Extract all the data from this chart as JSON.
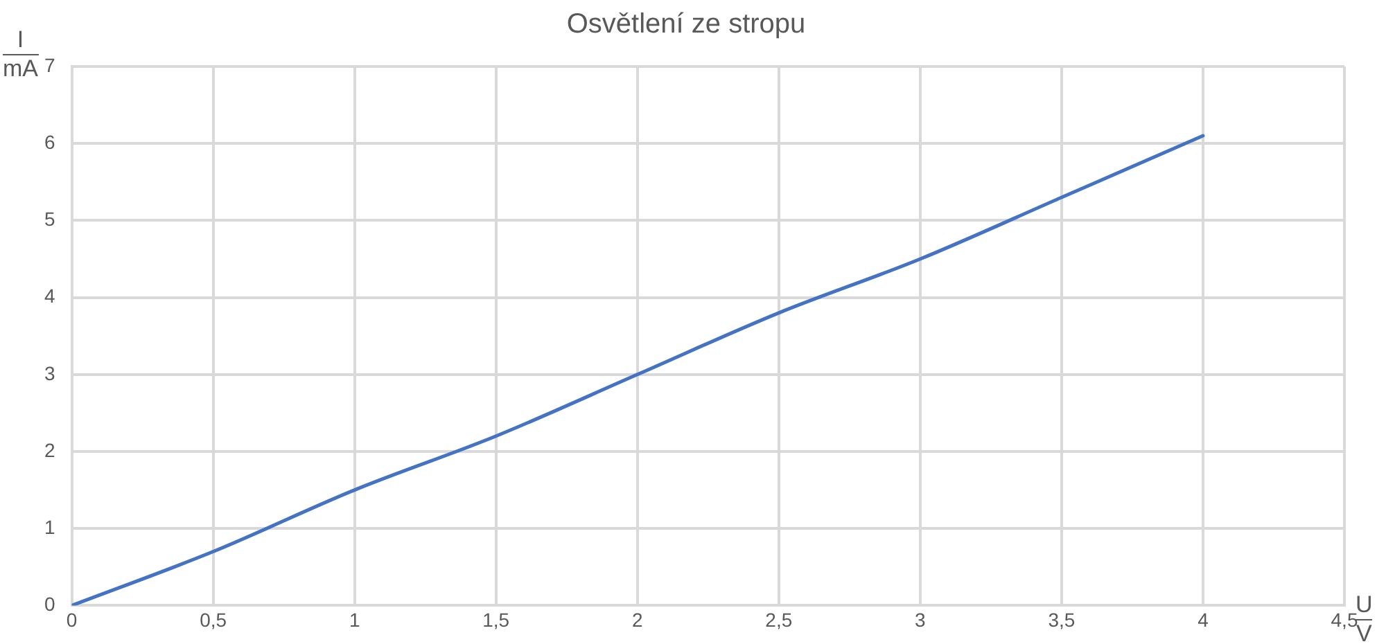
{
  "chart_data": {
    "type": "line",
    "title": "Osvětlení ze stropu",
    "xlabel": "U/V",
    "ylabel": "I/mA",
    "x": [
      0,
      0.5,
      1,
      1.5,
      2,
      2.5,
      3,
      3.5,
      4
    ],
    "series": [
      {
        "color": "#4472c4",
        "values": [
          0,
          0.7,
          1.5,
          2.2,
          3.0,
          3.8,
          4.5,
          5.3,
          6.1
        ]
      }
    ],
    "xlim": [
      0,
      4.5
    ],
    "xticks": [
      0,
      {
        "value": 0.5,
        "label": "0,5"
      },
      1,
      {
        "value": 1.5,
        "label": "1,5"
      },
      2,
      {
        "value": 2.5,
        "label": "2,5"
      },
      3,
      {
        "value": 3.5,
        "label": "3,5"
      },
      4,
      {
        "value": 4.5,
        "label": "4,5"
      }
    ],
    "ylim": [
      0,
      7
    ],
    "yticks": [
      0,
      1,
      2,
      3,
      4,
      5,
      6,
      7
    ],
    "grid": true,
    "marker": "none",
    "line_style": "solid",
    "legend": false
  }
}
